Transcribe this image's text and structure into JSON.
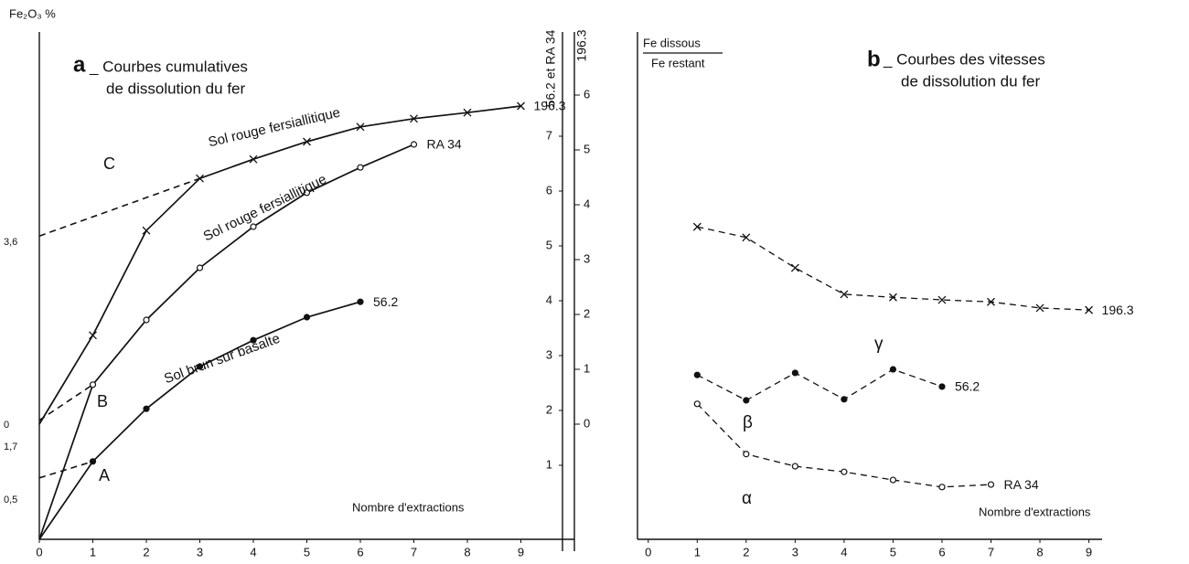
{
  "chart_data": [
    {
      "type": "line",
      "panel_label": "a",
      "title": [
        "_ Courbes cumulatives",
        "de dissolution du fer"
      ],
      "y_label": "Fe₂O₃ %",
      "y_axis_labels": [
        "3,6",
        "0",
        "1,7",
        "0,5"
      ],
      "y_right_label": "56.2 et RA 34",
      "y2_label": "196.3",
      "x_label": "Nombre d'extractions",
      "xlim": [
        0,
        10
      ],
      "xticks": [
        0,
        1,
        2,
        3,
        4,
        5,
        6,
        7,
        8,
        9
      ],
      "ylim": [
        -0.35,
        8.9
      ],
      "yticks": [
        1,
        2,
        3,
        4,
        5,
        6,
        7
      ],
      "y2lim": [
        -2.1,
        7.15
      ],
      "y2ticks": [
        0,
        1,
        2,
        3,
        4,
        5,
        6
      ],
      "series": [
        {
          "name": "196.3",
          "axis": "y2",
          "marker": "x",
          "color": "#111111",
          "x": [
            0,
            1,
            2,
            3,
            4,
            5,
            6,
            7,
            8,
            9
          ],
          "values": [
            0,
            1.62,
            3.53,
            4.48,
            4.83,
            5.15,
            5.42,
            5.57,
            5.68,
            5.8
          ],
          "extrapolation": {
            "x": [
              0,
              3
            ],
            "values": [
              3.43,
              4.48
            ]
          }
        },
        {
          "name": "RA 34",
          "marker": "o",
          "color": "#111111",
          "x": [
            0,
            1,
            2,
            3,
            4,
            5,
            6,
            7
          ],
          "values": [
            -0.35,
            2.47,
            3.65,
            4.6,
            5.35,
            5.97,
            6.43,
            6.85
          ],
          "extrapolation": {
            "x": [
              0,
              1
            ],
            "values": [
              1.82,
              2.47
            ]
          }
        },
        {
          "name": "56.2",
          "marker": "filled",
          "color": "#111111",
          "x": [
            0,
            1,
            2,
            3,
            4,
            5,
            6
          ],
          "values": [
            -0.35,
            1.07,
            2.03,
            2.8,
            3.28,
            3.7,
            3.98
          ],
          "extrapolation": {
            "x": [
              0,
              1
            ],
            "values": [
              0.77,
              1.07
            ]
          }
        }
      ],
      "annotations": [
        "C",
        "B",
        "A",
        "Sol rouge fersiallitique",
        "Sol rouge fersiallitique",
        "Sol brun sur basalte"
      ]
    },
    {
      "type": "line",
      "panel_label": "b",
      "title": [
        "_ Courbes des vitesses",
        "de dissolution du fer"
      ],
      "y_label": [
        "Fe dissous",
        "Fe restant"
      ],
      "x_label": "Nombre d'extractions",
      "xlim": [
        -0.22,
        9.27
      ],
      "xticks": [
        0,
        1,
        2,
        3,
        4,
        5,
        6,
        7,
        8,
        9
      ],
      "line_style": "dashed",
      "series": [
        {
          "name": "196.3",
          "marker": "x",
          "color": "#111111",
          "x": [
            1,
            2,
            3,
            4,
            5,
            6,
            7,
            8,
            9
          ],
          "values": [
            61.6,
            59.5,
            53.5,
            48.3,
            47.7,
            47.2,
            46.8,
            45.6,
            45.2
          ]
        },
        {
          "name": "56.2",
          "marker": "filled",
          "color": "#111111",
          "x": [
            1,
            2,
            3,
            4,
            5,
            6
          ],
          "values": [
            32.4,
            27.4,
            32.8,
            27.6,
            33.5,
            30.1
          ]
        },
        {
          "name": "RA 34",
          "marker": "o",
          "color": "#111111",
          "x": [
            1,
            2,
            3,
            4,
            5,
            6,
            7
          ],
          "values": [
            26.7,
            16.8,
            14.4,
            13.3,
            11.7,
            10.3,
            10.8
          ]
        }
      ],
      "annotations": [
        "γ",
        "β",
        "α"
      ]
    }
  ]
}
